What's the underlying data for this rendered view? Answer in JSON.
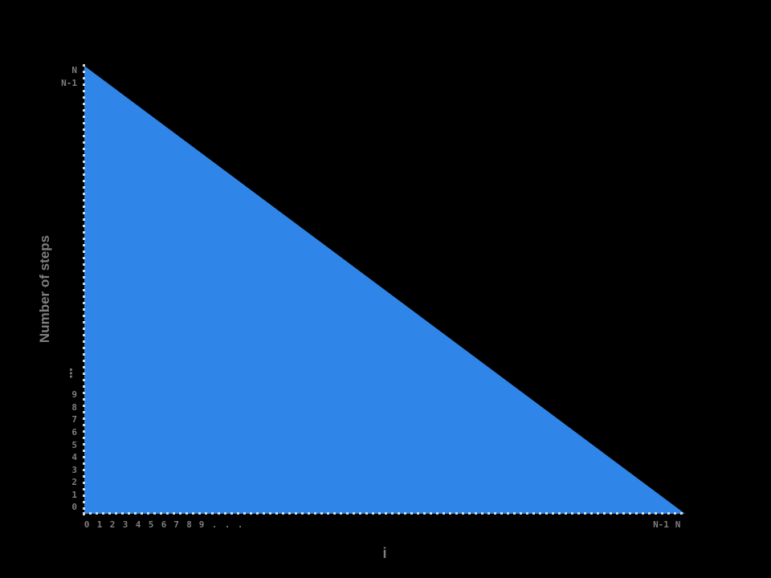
{
  "figure": {
    "xlabel": "i",
    "ylabel": "Number of steps",
    "y_ticks": [
      "0",
      "1",
      "2",
      "3",
      "4",
      "5",
      "6",
      "7",
      "8",
      "9",
      "⋮",
      "N-1",
      "N"
    ],
    "x_ticks": [
      "0",
      "1",
      "2",
      "3",
      "4",
      "5",
      "6",
      "7",
      "8",
      "9",
      ".",
      ".",
      ".",
      "N-1",
      "N"
    ],
    "colors": {
      "background": "#000000",
      "fill": "#2F86E8",
      "text": "#7E7E7E",
      "axis_dots": "#D8D8D8"
    }
  },
  "chart_data": {
    "type": "area",
    "title": "",
    "xlabel": "i",
    "ylabel": "Number of steps",
    "x_tick_labels": [
      "0",
      "1",
      "2",
      "3",
      "4",
      "5",
      "6",
      "7",
      "8",
      "9",
      "...",
      "N-1",
      "N"
    ],
    "y_tick_labels": [
      "0",
      "1",
      "2",
      "3",
      "4",
      "5",
      "6",
      "7",
      "8",
      "9",
      "⋮",
      "N-1",
      "N"
    ],
    "series": [
      {
        "name": "Number of steps",
        "description": "steps = N - i (linear decrease); filled area under the line forms a right triangle",
        "points": [
          {
            "i": "0",
            "steps": "N"
          },
          {
            "i": "N",
            "steps": "0"
          }
        ]
      }
    ],
    "x_range": [
      "0",
      "N"
    ],
    "y_range": [
      "0",
      "N"
    ],
    "fill_color": "#2F86E8",
    "background": "#000000",
    "axis_style": "dotted",
    "grid": false,
    "legend": "none"
  }
}
